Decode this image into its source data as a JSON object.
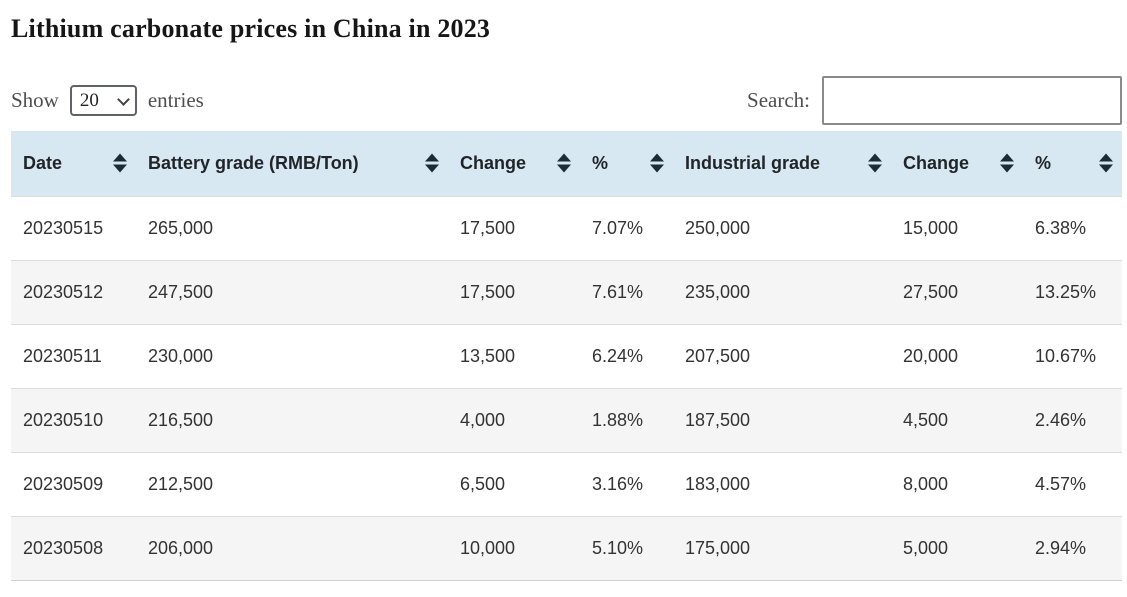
{
  "title": "Lithium carbonate prices in China in 2023",
  "controls": {
    "show_label": "Show",
    "page_size": "20",
    "entries_label": "entries",
    "search_label": "Search:",
    "search_value": ""
  },
  "table": {
    "headers": [
      {
        "key": "date",
        "label": "Date",
        "icon": "sort-icon"
      },
      {
        "key": "battery-grade",
        "label": "Battery grade (RMB/Ton)",
        "icon": "sort-icon"
      },
      {
        "key": "battery-change",
        "label": "Change",
        "icon": "sort-icon"
      },
      {
        "key": "battery-percent",
        "label": "%",
        "icon": "sort-icon"
      },
      {
        "key": "industrial-grade",
        "label": "Industrial grade",
        "icon": "sort-icon"
      },
      {
        "key": "industrial-change",
        "label": "Change",
        "icon": "sort-icon"
      },
      {
        "key": "industrial-percent",
        "label": "%",
        "icon": "sort-icon"
      }
    ],
    "rows": [
      [
        "20230515",
        "265,000",
        "17,500",
        "7.07%",
        "250,000",
        "15,000",
        "6.38%"
      ],
      [
        "20230512",
        "247,500",
        "17,500",
        "7.61%",
        "235,000",
        "27,500",
        "13.25%"
      ],
      [
        "20230511",
        "230,000",
        "13,500",
        "6.24%",
        "207,500",
        "20,000",
        "10.67%"
      ],
      [
        "20230510",
        "216,500",
        "4,000",
        "1.88%",
        "187,500",
        "4,500",
        "2.46%"
      ],
      [
        "20230509",
        "212,500",
        "6,500",
        "3.16%",
        "183,000",
        "8,000",
        "4.57%"
      ],
      [
        "20230508",
        "206,000",
        "10,000",
        "5.10%",
        "175,000",
        "5,000",
        "2.94%"
      ]
    ]
  },
  "colors": {
    "header_bg": "#d7e8f2",
    "stripe_bg": "#f5f5f5",
    "row_border": "#dcdcdc",
    "sort_icon": "#1d2b36",
    "label_text": "#4e4e4e",
    "cell_text": "#333333"
  }
}
